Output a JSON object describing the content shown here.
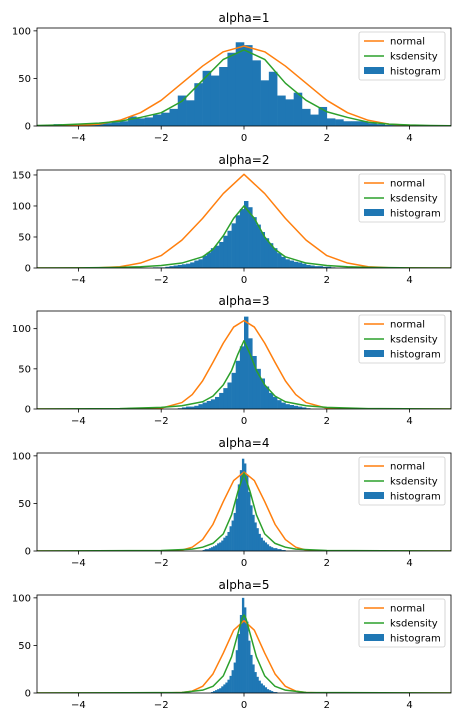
{
  "chart_data": [
    {
      "type": "bar",
      "title": "alpha=1",
      "xlim": [
        -5,
        5
      ],
      "ylim": [
        0,
        103
      ],
      "xticks": [
        -4,
        -2,
        0,
        2,
        4
      ],
      "xtick_labels": [
        "−4",
        "−2",
        "0",
        "2",
        "4"
      ],
      "yticks": [
        0,
        50,
        100
      ],
      "legend": {
        "position": "top-right",
        "entries": [
          "normal",
          "ksdensity",
          "histogram"
        ]
      },
      "colors": {
        "normal": "#ff7f0e",
        "ksdensity": "#2ca02c",
        "histogram": "#1f77b4"
      },
      "histogram": {
        "bin_edges": [
          -4.8,
          -4.6,
          -4.4,
          -4.2,
          -4.0,
          -3.8,
          -3.6,
          -3.4,
          -3.2,
          -3.0,
          -2.8,
          -2.6,
          -2.4,
          -2.2,
          -2.0,
          -1.8,
          -1.6,
          -1.4,
          -1.2,
          -1.0,
          -0.8,
          -0.6,
          -0.4,
          -0.2,
          0.0,
          0.2,
          0.4,
          0.6,
          0.8,
          1.0,
          1.2,
          1.4,
          1.6,
          1.8,
          2.0,
          2.2,
          2.4,
          2.6,
          2.8,
          3.0,
          3.2,
          3.4,
          3.6,
          3.8,
          4.0,
          4.2,
          4.4,
          4.6,
          4.8
        ],
        "counts": [
          1,
          2,
          1,
          0,
          1,
          1,
          2,
          3,
          4,
          5,
          10,
          8,
          9,
          12,
          14,
          18,
          32,
          27,
          45,
          58,
          53,
          62,
          77,
          88,
          85,
          69,
          48,
          57,
          32,
          28,
          35,
          18,
          12,
          20,
          8,
          7,
          5,
          5,
          5,
          3,
          2,
          1,
          1,
          1,
          0,
          1,
          0,
          1
        ]
      },
      "normal": {
        "x": [
          -5,
          -4.5,
          -4,
          -3.5,
          -3,
          -2.5,
          -2,
          -1.5,
          -1,
          -0.5,
          0,
          0.5,
          1,
          1.5,
          2,
          2.5,
          3,
          3.5,
          4,
          4.5,
          5
        ],
        "y": [
          0.03,
          0.15,
          0.6,
          2,
          6,
          14,
          27,
          45,
          63,
          78,
          84,
          78,
          63,
          45,
          27,
          14,
          6,
          2,
          0.6,
          0.15,
          0.03
        ]
      },
      "ksdensity": {
        "x": [
          -5,
          -4.5,
          -4,
          -3.5,
          -3,
          -2.5,
          -2,
          -1.5,
          -1,
          -0.5,
          0,
          0.5,
          1,
          1.5,
          2,
          2.5,
          3,
          3.5,
          4,
          4.5,
          5
        ],
        "y": [
          0.5,
          1,
          2,
          3,
          5,
          9,
          14,
          26,
          48,
          70,
          80,
          70,
          45,
          27,
          15,
          9,
          4,
          2,
          1,
          0.5,
          0.2
        ]
      }
    },
    {
      "type": "bar",
      "title": "alpha=2",
      "xlim": [
        -5,
        5
      ],
      "ylim": [
        0,
        158
      ],
      "xticks": [
        -4,
        -2,
        0,
        2,
        4
      ],
      "xtick_labels": [
        "−4",
        "−2",
        "0",
        "2",
        "4"
      ],
      "yticks": [
        0,
        50,
        100,
        150
      ],
      "legend": {
        "position": "top-right",
        "entries": [
          "normal",
          "ksdensity",
          "histogram"
        ]
      },
      "colors": {
        "normal": "#ff7f0e",
        "ksdensity": "#2ca02c",
        "histogram": "#1f77b4"
      },
      "histogram": {
        "bin_edges": [
          -2.2,
          -2.1,
          -2.0,
          -1.9,
          -1.8,
          -1.7,
          -1.6,
          -1.5,
          -1.4,
          -1.3,
          -1.2,
          -1.1,
          -1.0,
          -0.9,
          -0.8,
          -0.7,
          -0.6,
          -0.5,
          -0.4,
          -0.3,
          -0.2,
          -0.1,
          0.0,
          0.1,
          0.2,
          0.3,
          0.4,
          0.5,
          0.6,
          0.7,
          0.8,
          0.9,
          1.0,
          1.1,
          1.2,
          1.3,
          1.4,
          1.5,
          1.6,
          1.7,
          1.8,
          1.9,
          2.0,
          2.1,
          2.2
        ],
        "counts": [
          1,
          1,
          1,
          2,
          3,
          4,
          5,
          6,
          7,
          9,
          12,
          14,
          20,
          25,
          32,
          36,
          42,
          52,
          60,
          72,
          85,
          95,
          108,
          98,
          82,
          70,
          58,
          48,
          40,
          32,
          24,
          18,
          14,
          12,
          10,
          9,
          7,
          5,
          4,
          3,
          3,
          2,
          2,
          1
        ]
      },
      "normal": {
        "x": [
          -5,
          -4.5,
          -4,
          -3.5,
          -3,
          -2.5,
          -2,
          -1.5,
          -1,
          -0.5,
          0,
          0.5,
          1,
          1.5,
          2,
          2.5,
          3,
          3.5,
          4,
          4.5,
          5
        ],
        "y": [
          0,
          0,
          0.2,
          0.5,
          2,
          8,
          20,
          45,
          80,
          120,
          151,
          120,
          80,
          45,
          20,
          8,
          2,
          0.5,
          0.2,
          0,
          0
        ]
      },
      "ksdensity": {
        "x": [
          -5,
          -4,
          -3,
          -2.5,
          -2,
          -1.5,
          -1,
          -0.75,
          -0.5,
          -0.25,
          0,
          0.25,
          0.5,
          0.75,
          1,
          1.5,
          2,
          2.5,
          3,
          4,
          5
        ],
        "y": [
          0,
          0.2,
          1,
          2,
          4,
          8,
          18,
          30,
          52,
          80,
          100,
          80,
          50,
          30,
          18,
          8,
          4,
          2,
          1,
          0.2,
          0
        ]
      }
    },
    {
      "type": "bar",
      "title": "alpha=3",
      "xlim": [
        -5,
        5
      ],
      "ylim": [
        0,
        122
      ],
      "xticks": [
        -4,
        -2,
        0,
        2,
        4
      ],
      "xtick_labels": [
        "−4",
        "−2",
        "0",
        "2",
        "4"
      ],
      "yticks": [
        0,
        50,
        100
      ],
      "legend": {
        "position": "top-right",
        "entries": [
          "normal",
          "ksdensity",
          "histogram"
        ]
      },
      "colors": {
        "normal": "#ff7f0e",
        "ksdensity": "#2ca02c",
        "histogram": "#1f77b4"
      },
      "histogram": {
        "bin_edges": [
          -1.6,
          -1.5,
          -1.4,
          -1.3,
          -1.2,
          -1.1,
          -1.0,
          -0.9,
          -0.8,
          -0.7,
          -0.6,
          -0.5,
          -0.4,
          -0.3,
          -0.2,
          -0.1,
          0.0,
          0.1,
          0.2,
          0.3,
          0.4,
          0.5,
          0.6,
          0.7,
          0.8,
          0.9,
          1.0,
          1.1,
          1.2,
          1.3,
          1.4,
          1.5,
          1.6
        ],
        "counts": [
          1,
          2,
          3,
          3,
          4,
          6,
          8,
          10,
          12,
          15,
          20,
          26,
          33,
          45,
          60,
          78,
          115,
          88,
          66,
          50,
          38,
          28,
          20,
          15,
          11,
          8,
          6,
          5,
          4,
          3,
          2,
          1
        ]
      },
      "normal": {
        "x": [
          -5,
          -4,
          -3,
          -2.5,
          -2,
          -1.5,
          -1.25,
          -1,
          -0.75,
          -0.5,
          -0.25,
          0,
          0.25,
          0.5,
          0.75,
          1,
          1.25,
          1.5,
          2,
          2.5,
          3,
          4,
          5
        ],
        "y": [
          0,
          0,
          0,
          0.2,
          1,
          8,
          18,
          35,
          58,
          82,
          102,
          110,
          102,
          82,
          58,
          35,
          18,
          8,
          1,
          0.2,
          0,
          0,
          0
        ]
      },
      "ksdensity": {
        "x": [
          -5,
          -3,
          -2,
          -1.5,
          -1,
          -0.75,
          -0.5,
          -0.3,
          -0.15,
          0,
          0.15,
          0.3,
          0.5,
          0.75,
          1,
          1.5,
          2,
          3,
          5
        ],
        "y": [
          0,
          0.5,
          2,
          4,
          9,
          16,
          30,
          48,
          68,
          85,
          68,
          48,
          30,
          16,
          9,
          4,
          2,
          0.5,
          0
        ]
      }
    },
    {
      "type": "bar",
      "title": "alpha=4",
      "xlim": [
        -5,
        5
      ],
      "ylim": [
        0,
        103
      ],
      "xticks": [
        -4,
        -2,
        0,
        2,
        4
      ],
      "xtick_labels": [
        "−4",
        "−2",
        "0",
        "2",
        "4"
      ],
      "yticks": [
        0,
        50,
        100
      ],
      "legend": {
        "position": "top-right",
        "entries": [
          "normal",
          "ksdensity",
          "histogram"
        ]
      },
      "colors": {
        "normal": "#ff7f0e",
        "ksdensity": "#2ca02c",
        "histogram": "#1f77b4"
      },
      "histogram": {
        "bin_edges": [
          -1.0,
          -0.95,
          -0.9,
          -0.85,
          -0.8,
          -0.75,
          -0.7,
          -0.65,
          -0.6,
          -0.55,
          -0.5,
          -0.45,
          -0.4,
          -0.35,
          -0.3,
          -0.25,
          -0.2,
          -0.15,
          -0.1,
          -0.05,
          0.0,
          0.05,
          0.1,
          0.15,
          0.2,
          0.25,
          0.3,
          0.35,
          0.4,
          0.45,
          0.5,
          0.55,
          0.6,
          0.65,
          0.7,
          0.75,
          0.8,
          0.85,
          0.9,
          0.95,
          1.0
        ],
        "counts": [
          1,
          2,
          2,
          3,
          4,
          5,
          6,
          8,
          9,
          11,
          14,
          16,
          20,
          26,
          32,
          40,
          55,
          70,
          85,
          97,
          92,
          80,
          62,
          48,
          38,
          30,
          24,
          18,
          14,
          11,
          9,
          7,
          5,
          4,
          3,
          3,
          2,
          2,
          1,
          1
        ]
      },
      "normal": {
        "x": [
          -5,
          -3,
          -2,
          -1.5,
          -1.25,
          -1,
          -0.75,
          -0.5,
          -0.25,
          0,
          0.25,
          0.5,
          0.75,
          1,
          1.25,
          1.5,
          2,
          3,
          5
        ],
        "y": [
          0,
          0,
          0,
          1,
          4,
          12,
          28,
          52,
          74,
          83,
          74,
          52,
          28,
          12,
          4,
          1,
          0,
          0,
          0
        ]
      },
      "ksdensity": {
        "x": [
          -5,
          -2,
          -1.25,
          -1,
          -0.75,
          -0.5,
          -0.3,
          -0.15,
          0,
          0.15,
          0.3,
          0.5,
          0.75,
          1,
          1.25,
          2,
          5
        ],
        "y": [
          0,
          0.5,
          2,
          4,
          8,
          18,
          38,
          62,
          82,
          62,
          38,
          18,
          8,
          4,
          2,
          0.5,
          0
        ]
      }
    },
    {
      "type": "bar",
      "title": "alpha=5",
      "xlim": [
        -5,
        5
      ],
      "ylim": [
        0,
        103
      ],
      "xticks": [
        -4,
        -2,
        0,
        2,
        4
      ],
      "xtick_labels": [
        "−4",
        "−2",
        "0",
        "2",
        "4"
      ],
      "yticks": [
        0,
        50,
        100
      ],
      "legend": {
        "position": "top-right",
        "entries": [
          "normal",
          "ksdensity",
          "histogram"
        ]
      },
      "colors": {
        "normal": "#ff7f0e",
        "ksdensity": "#2ca02c",
        "histogram": "#1f77b4"
      },
      "histogram": {
        "bin_edges": [
          -0.8,
          -0.75,
          -0.7,
          -0.65,
          -0.6,
          -0.55,
          -0.5,
          -0.45,
          -0.4,
          -0.35,
          -0.3,
          -0.25,
          -0.2,
          -0.15,
          -0.1,
          -0.05,
          0.0,
          0.05,
          0.1,
          0.15,
          0.2,
          0.25,
          0.3,
          0.35,
          0.4,
          0.45,
          0.5,
          0.55,
          0.6,
          0.65,
          0.7,
          0.75,
          0.8
        ],
        "counts": [
          1,
          2,
          3,
          4,
          5,
          7,
          9,
          11,
          14,
          18,
          24,
          32,
          45,
          62,
          82,
          100,
          90,
          75,
          55,
          40,
          30,
          22,
          17,
          13,
          10,
          8,
          6,
          4,
          3,
          2,
          1,
          1
        ]
      },
      "normal": {
        "x": [
          -5,
          -2,
          -1.5,
          -1.25,
          -1,
          -0.75,
          -0.5,
          -0.25,
          0,
          0.25,
          0.5,
          0.75,
          1,
          1.25,
          1.5,
          2,
          5
        ],
        "y": [
          0,
          0,
          0.5,
          2,
          7,
          20,
          42,
          66,
          76,
          66,
          42,
          20,
          7,
          2,
          0.5,
          0,
          0
        ]
      },
      "ksdensity": {
        "x": [
          -5,
          -1.5,
          -1,
          -0.75,
          -0.5,
          -0.3,
          -0.15,
          -0.05,
          0,
          0.05,
          0.15,
          0.3,
          0.5,
          0.75,
          1,
          1.5,
          5
        ],
        "y": [
          0,
          0.5,
          3,
          7,
          18,
          38,
          62,
          78,
          82,
          78,
          62,
          38,
          18,
          7,
          3,
          0.5,
          0
        ]
      }
    }
  ]
}
